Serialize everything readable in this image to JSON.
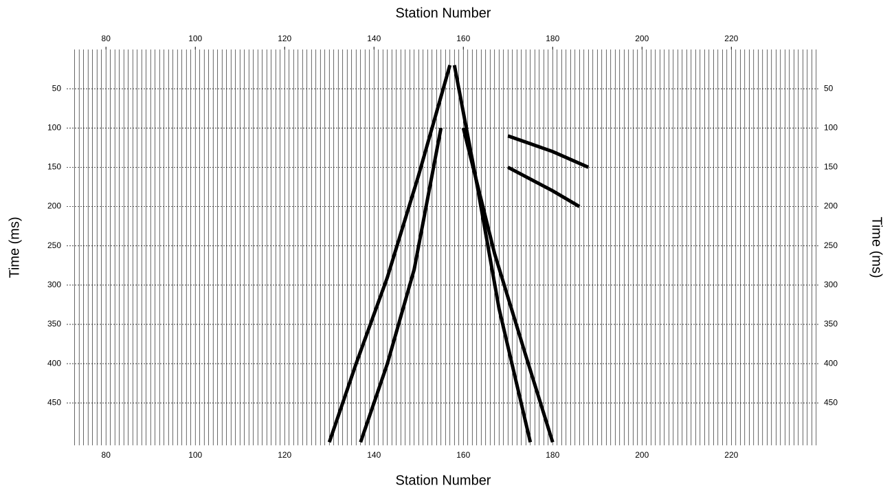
{
  "chart_data": {
    "type": "seismic",
    "xlabel": "Station Number",
    "xlabel_top": "Station Number",
    "ylabel": "Time (ms)",
    "ylabel_right": "Time (ms)",
    "xlim": [
      71.2,
      239.8
    ],
    "xticks": [
      80,
      100,
      120,
      140,
      160,
      180,
      200,
      220
    ],
    "ylim": [
      0,
      504
    ],
    "yticks": [
      50,
      100,
      150,
      200,
      250,
      300,
      350,
      400,
      450
    ],
    "y_inverted": true,
    "grid": true,
    "series": [
      {
        "color": "#000000",
        "x": [
          157,
          150,
          143,
          136,
          130
        ],
        "y": [
          20,
          160,
          290,
          400,
          500
        ]
      },
      {
        "color": "#000000",
        "x": [
          155,
          149,
          143,
          137
        ],
        "y": [
          100,
          280,
          400,
          500
        ]
      },
      {
        "color": "#000000",
        "x": [
          158,
          163,
          168,
          175
        ],
        "y": [
          20,
          170,
          330,
          500
        ]
      },
      {
        "color": "#000000",
        "x": [
          160,
          167,
          174,
          180
        ],
        "y": [
          100,
          260,
          390,
          500
        ]
      },
      {
        "color": "#000000",
        "x": [
          170,
          180,
          188
        ],
        "y": [
          110,
          130,
          150
        ]
      },
      {
        "color": "#000000",
        "x": [
          170,
          180,
          186
        ],
        "y": [
          150,
          180,
          200
        ]
      }
    ]
  }
}
